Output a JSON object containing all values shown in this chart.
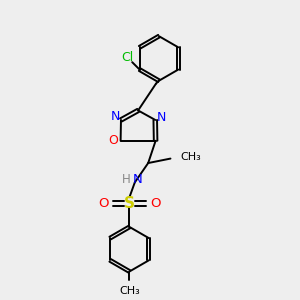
{
  "background_color": "#eeeeee",
  "bond_color": "#000000",
  "line_width": 1.4,
  "figsize": [
    3.0,
    3.0
  ],
  "dpi": 100,
  "xlim": [
    0,
    1
  ],
  "ylim": [
    0,
    1
  ]
}
